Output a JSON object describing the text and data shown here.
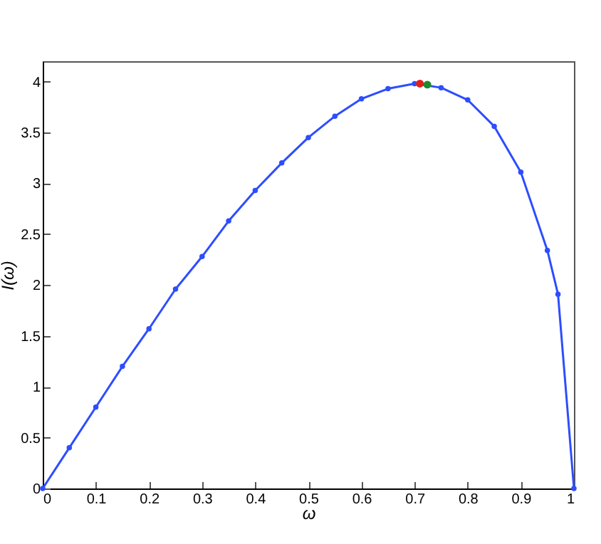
{
  "chart_data": {
    "type": "line",
    "xlabel": "ω",
    "ylabel": "I(ω)",
    "xlim": [
      0,
      1
    ],
    "ylim": [
      0,
      4.2
    ],
    "xticks": [
      0,
      0.1,
      0.2,
      0.3,
      0.4,
      0.5,
      0.6,
      0.7,
      0.8,
      0.9,
      1
    ],
    "yticks": [
      0,
      0.5,
      1,
      1.5,
      2,
      2.5,
      3,
      3.5,
      4
    ],
    "grid": false,
    "marker": "circle",
    "line_style": "solid",
    "series": [
      {
        "color": "#2d4dff",
        "x": [
          0,
          0.05,
          0.1,
          0.15,
          0.2,
          0.25,
          0.3,
          0.35,
          0.4,
          0.45,
          0.5,
          0.55,
          0.6,
          0.65,
          0.7,
          0.75,
          0.8,
          0.85,
          0.9,
          0.95,
          0.97,
          1
        ],
        "values": [
          0,
          0.4,
          0.8,
          1.2,
          1.57,
          1.96,
          2.28,
          2.63,
          2.93,
          3.2,
          3.45,
          3.66,
          3.83,
          3.93,
          3.98,
          3.94,
          3.82,
          3.56,
          3.11,
          2.34,
          1.91,
          0
        ]
      },
      {
        "type": "scatter",
        "color": "#e0201c",
        "x": [
          0.71
        ],
        "values": [
          3.98
        ]
      },
      {
        "type": "scatter",
        "color": "#1f8a2a",
        "x": [
          0.724
        ],
        "values": [
          3.97
        ]
      }
    ]
  }
}
